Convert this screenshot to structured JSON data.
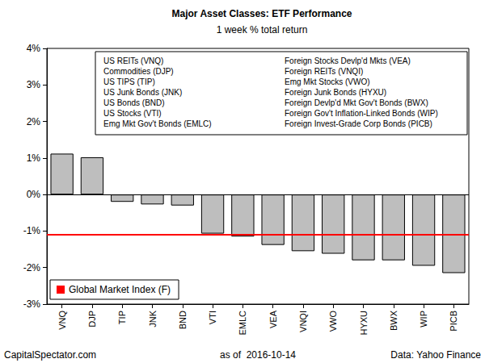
{
  "chart_data": {
    "type": "bar",
    "title": "Major Asset Classes: ETF Performance",
    "subtitle": "1 week % total return",
    "categories": [
      "VNQ",
      "DJP",
      "TIP",
      "JNK",
      "BND",
      "VTI",
      "EMLC",
      "VEA",
      "VNQI",
      "VWO",
      "HYXU",
      "BWX",
      "WIP",
      "PICB"
    ],
    "values": [
      1.12,
      1.02,
      -0.2,
      -0.27,
      -0.3,
      -1.07,
      -1.15,
      -1.38,
      -1.55,
      -1.62,
      -1.8,
      -1.8,
      -1.95,
      -2.15
    ],
    "color": "#bebebe",
    "ylim": [
      -3,
      4
    ],
    "yticks": [
      {
        "value": -3,
        "label": "-3%"
      },
      {
        "value": -2,
        "label": "-2%"
      },
      {
        "value": -1,
        "label": "-1%"
      },
      {
        "value": 0,
        "label": "0%"
      },
      {
        "value": 1,
        "label": "1%"
      },
      {
        "value": 2,
        "label": "2%"
      },
      {
        "value": 3,
        "label": "3%"
      },
      {
        "value": 4,
        "label": "4%"
      }
    ],
    "grid": false,
    "legend": "lower left",
    "reference_line": {
      "name": "Global Market Index (F)",
      "value": -1.1,
      "color": "#ff0000"
    },
    "annotations": [
      "US REITs (VNQ)",
      "Commodities (DJP)",
      "US TIPS (TIP)",
      "US Junk Bonds (JNK)",
      "US Bonds (BND)",
      "US Stocks (VTI)",
      "Emg Mkt Gov't Bonds (EMLC)",
      "Foreign Stocks Devlp'd Mkts (VEA)",
      "Foreign REITs (VNQI)",
      "Emg Mkt Stocks (VWO)",
      "Foreign Junk Bonds (HYXU)",
      "Foreign Devlp'd Mkt Gov't Bonds (BWX)",
      "Foreign Gov't Inflation-Linked Bonds (WIP)",
      "Foreign Invest-Grade Corp Bonds (PICB)"
    ],
    "footer": [
      "CapitalSpectator.com",
      "as of  2016-10-14",
      "Data: Yahoo Finance"
    ]
  }
}
